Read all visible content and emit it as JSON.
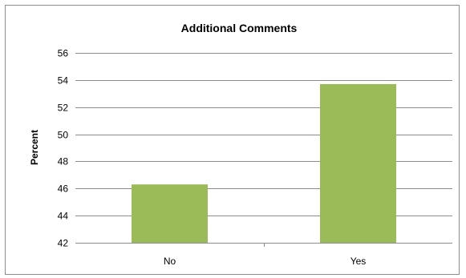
{
  "chart_data": {
    "type": "bar",
    "title": "Additional Comments",
    "xlabel": "",
    "ylabel": "Percent",
    "categories": [
      "No",
      "Yes"
    ],
    "values": [
      46.3,
      53.7
    ],
    "ylim": [
      42,
      56
    ],
    "yticks": [
      42,
      44,
      46,
      48,
      50,
      52,
      54,
      56
    ],
    "grid": true,
    "legend": "none",
    "bar_color": "#9bbb59"
  }
}
